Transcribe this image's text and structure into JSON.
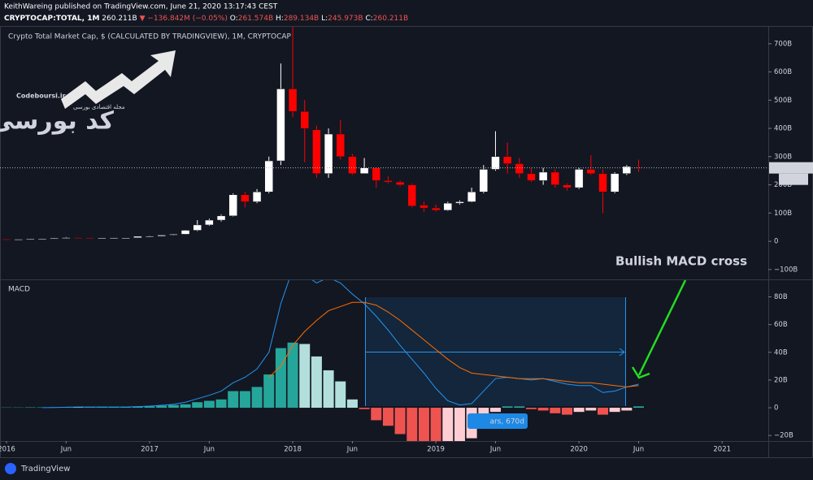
{
  "header": {
    "publisher": "KeithWareing published on TradingView.com, June 21, 2020 13:17:43 CEST",
    "symbol": "CRYPTOCAP:TOTAL, 1M",
    "price": "260.211B",
    "change": "▼ −136.842M (−0.05%)",
    "ohlc": [
      {
        "label": "O:",
        "value": "261.574B"
      },
      {
        "label": "H:",
        "value": "289.134B"
      },
      {
        "label": "L:",
        "value": "245.973B"
      },
      {
        "label": "C:",
        "value": "260.211B"
      }
    ]
  },
  "logo": {
    "site": "Codeboursi.ir",
    "tagline": "مجله اقتصادی بورسی",
    "name": "کد بورسی"
  },
  "footer": {
    "brand": "TradingView"
  },
  "chart_data": [
    {
      "type": "candlestick",
      "title": "Crypto Total Market Cap, $ (CALCULATED BY TRADINGVIEW), 1M, CRYPTOCAP",
      "annotation": "Bullish MACD cross",
      "x": [
        "2016-01",
        "2016-02",
        "2016-03",
        "2016-04",
        "2016-05",
        "2016-06",
        "2016-07",
        "2016-08",
        "2016-09",
        "2016-10",
        "2016-11",
        "2016-12",
        "2017-01",
        "2017-02",
        "2017-03",
        "2017-04",
        "2017-05",
        "2017-06",
        "2017-07",
        "2017-08",
        "2017-09",
        "2017-10",
        "2017-11",
        "2017-12",
        "2018-01",
        "2018-02",
        "2018-03",
        "2018-04",
        "2018-05",
        "2018-06",
        "2018-07",
        "2018-08",
        "2018-09",
        "2018-10",
        "2018-11",
        "2018-12",
        "2019-01",
        "2019-02",
        "2019-03",
        "2019-04",
        "2019-05",
        "2019-06",
        "2019-07",
        "2019-08",
        "2019-09",
        "2019-10",
        "2019-11",
        "2019-12",
        "2020-01",
        "2020-02",
        "2020-03",
        "2020-04",
        "2020-05",
        "2020-06"
      ],
      "open": [
        7.5,
        7,
        7.2,
        8.5,
        8.8,
        11.5,
        13,
        12,
        11.5,
        11.8,
        12,
        12.5,
        17.7,
        18,
        22,
        25,
        39,
        58,
        75,
        90,
        165,
        140,
        175,
        285,
        540,
        460,
        395,
        240,
        380,
        300,
        240,
        260,
        215,
        210,
        200,
        128,
        118,
        110,
        135,
        140,
        175,
        255,
        300,
        275,
        240,
        215,
        245,
        200,
        190,
        255,
        240,
        175,
        240,
        261.574
      ],
      "high": [
        7.8,
        7.5,
        9,
        9,
        12,
        15,
        13.5,
        12.5,
        12,
        12.5,
        13,
        17.7,
        20,
        22,
        26,
        40,
        75,
        80,
        95,
        170,
        175,
        185,
        300,
        630,
        760,
        500,
        410,
        400,
        430,
        310,
        295,
        260,
        230,
        215,
        205,
        140,
        130,
        140,
        145,
        190,
        270,
        390,
        350,
        295,
        260,
        260,
        255,
        205,
        260,
        305,
        255,
        245,
        270,
        289.134
      ],
      "low": [
        6.5,
        6.5,
        7,
        8,
        8.5,
        11,
        11,
        11,
        11,
        11.5,
        11.5,
        12.3,
        15,
        17,
        21,
        24,
        36,
        55,
        70,
        88,
        120,
        135,
        170,
        270,
        440,
        280,
        225,
        225,
        290,
        235,
        240,
        190,
        205,
        195,
        120,
        105,
        105,
        108,
        130,
        138,
        170,
        250,
        240,
        225,
        210,
        200,
        190,
        180,
        185,
        235,
        100,
        170,
        235,
        245.973
      ],
      "close": [
        7,
        7.2,
        8.5,
        8.8,
        11.5,
        13,
        12,
        11.5,
        11.8,
        12,
        12.5,
        17.7,
        18,
        22,
        25,
        39,
        58,
        75,
        90,
        165,
        140,
        175,
        285,
        540,
        460,
        400,
        240,
        380,
        300,
        240,
        260,
        215,
        210,
        200,
        125,
        118,
        110,
        135,
        140,
        175,
        255,
        300,
        275,
        240,
        215,
        245,
        200,
        190,
        255,
        240,
        175,
        240,
        265,
        260.211
      ],
      "up_color": "#ffffff",
      "down_color": "#ff0000",
      "last_price_label": "260.211B",
      "countdown": "9d 13h",
      "ylim": [
        -135,
        760
      ],
      "yticks": [
        {
          "value": -100,
          "label": "−100B"
        },
        0,
        {
          "value": 100,
          "label": "100B"
        },
        {
          "value": 200,
          "label": "200B"
        },
        {
          "value": 300,
          "label": "300B"
        },
        {
          "value": 400,
          "label": "400B"
        },
        {
          "value": 500,
          "label": "500B"
        },
        {
          "value": 600,
          "label": "600B"
        },
        {
          "value": 700,
          "label": "700B"
        }
      ],
      "xticks": [
        {
          "value": "2016-01",
          "label": "2016"
        },
        {
          "value": "2016-06",
          "label": "Jun"
        },
        {
          "value": "2017-01",
          "label": "2017"
        },
        {
          "value": "2017-06",
          "label": "Jun"
        },
        {
          "value": "2018-01",
          "label": "2018"
        },
        {
          "value": "2018-06",
          "label": "Jun"
        },
        {
          "value": "2019-01",
          "label": "2019"
        },
        {
          "value": "2019-06",
          "label": "Jun"
        },
        {
          "value": "2020-01",
          "label": "2020"
        },
        {
          "value": "2020-06",
          "label": "Jun"
        },
        {
          "value": "2021-01",
          "label": "2021"
        }
      ]
    },
    {
      "type": "macd",
      "title": "MACD",
      "measure_label": "ars, 670d",
      "series": [
        {
          "color": "#2196f3",
          "values": [
            null,
            null,
            null,
            0.1,
            0.2,
            0.4,
            0.5,
            0.5,
            0.5,
            0.5,
            0.5,
            0.8,
            1.2,
            1.8,
            2.5,
            4,
            6.5,
            9,
            12,
            18,
            22,
            28,
            40,
            75,
            100,
            96,
            90,
            94,
            90,
            82,
            75,
            66,
            56,
            45,
            35,
            25,
            14,
            5,
            2,
            3,
            12,
            21,
            22,
            21,
            20,
            21,
            19,
            17,
            16,
            16,
            11,
            12,
            15,
            17
          ]
        },
        {
          "color": "#ff6d00",
          "values": [
            null,
            null,
            null,
            null,
            null,
            null,
            null,
            null,
            null,
            null,
            null,
            null,
            null,
            null,
            null,
            null,
            null,
            null,
            null,
            null,
            null,
            null,
            22,
            30,
            45,
            55,
            63,
            70,
            73,
            76,
            76,
            74,
            69,
            63,
            56,
            49,
            42,
            35,
            29,
            25,
            24,
            23,
            22,
            21,
            21,
            21,
            20,
            19,
            18,
            18,
            17,
            16,
            15,
            16
          ]
        }
      ],
      "histogram": {
        "values": [
          0.2,
          0.2,
          0.3,
          0.3,
          0.4,
          0.4,
          0.3,
          0.3,
          0.3,
          0.3,
          0.4,
          0.6,
          1,
          1.5,
          2,
          2.5,
          4,
          5,
          6,
          12,
          12,
          15,
          24,
          43,
          47,
          46,
          37,
          27,
          19,
          6,
          -1,
          -9,
          -13,
          -19,
          -25,
          -28,
          -30,
          -28,
          -26,
          -22,
          -13,
          -3,
          1,
          1,
          -1,
          -2,
          -4,
          -5,
          -3,
          -2,
          -5,
          -3,
          -2,
          1
        ],
        "colors": {
          "growing_above": "#26a69a",
          "falling_above": "#b2dfdb",
          "falling_below": "#ef5350",
          "growing_below": "#ffcdd2"
        }
      },
      "ylim": [
        -24,
        92
      ],
      "yticks": [
        {
          "value": -20,
          "label": "−20B"
        },
        0,
        {
          "value": 20,
          "label": "20B"
        },
        {
          "value": 40,
          "label": "40B"
        },
        {
          "value": 60,
          "label": "60B"
        },
        {
          "value": 80,
          "label": "80B"
        }
      ]
    }
  ]
}
